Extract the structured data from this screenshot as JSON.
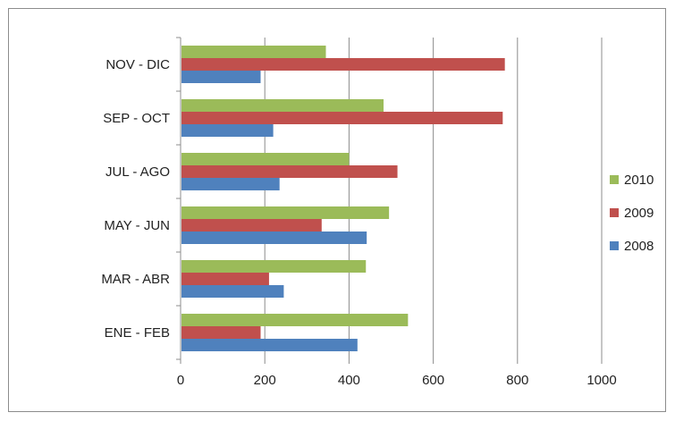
{
  "chart_data": {
    "type": "bar",
    "orientation": "horizontal",
    "categories": [
      "ENE - FEB",
      "MAR - ABR",
      "MAY - JUN",
      "JUL - AGO",
      "SEP - OCT",
      "NOV - DIC"
    ],
    "series": [
      {
        "name": "2008",
        "color": "#4f81bd",
        "values": [
          420,
          245,
          442,
          235,
          220,
          190
        ]
      },
      {
        "name": "2009",
        "color": "#c0504d",
        "values": [
          190,
          210,
          335,
          515,
          765,
          770
        ]
      },
      {
        "name": "2010",
        "color": "#9bbb59",
        "values": [
          540,
          440,
          495,
          400,
          482,
          345
        ]
      }
    ],
    "xlim": [
      0,
      1000
    ],
    "xticks": [
      "0",
      "200",
      "400",
      "600",
      "800",
      "1000"
    ],
    "grid": "vertical",
    "legend_position": "right",
    "legend_order": [
      "2010",
      "2009",
      "2008"
    ]
  }
}
